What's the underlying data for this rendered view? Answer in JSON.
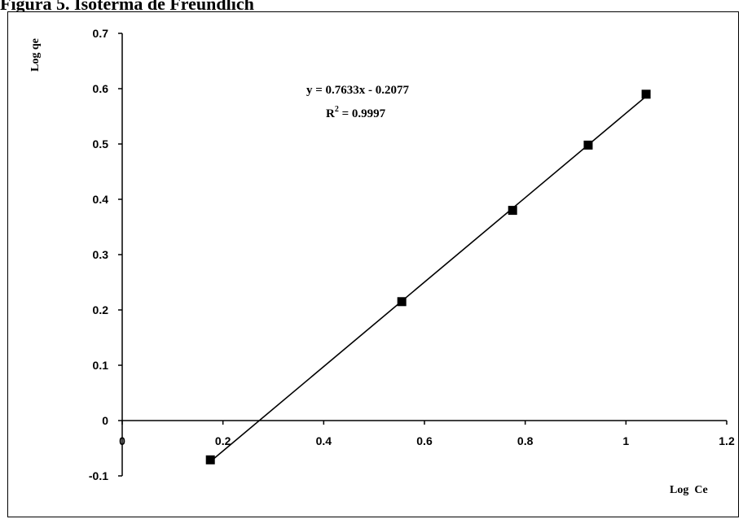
{
  "caption": "Figura 5. Isoterma de Freundlich",
  "chart_data": {
    "type": "scatter",
    "title": "",
    "xlabel": "Log  Ce",
    "ylabel": "Log qe",
    "xlim": [
      0,
      1.2
    ],
    "ylim": [
      -0.1,
      0.7
    ],
    "x_ticks": [
      "0",
      "0.2",
      "0.4",
      "0.6",
      "0.8",
      "1",
      "1.2"
    ],
    "y_ticks": [
      "-0.1",
      "0",
      "0.1",
      "0.2",
      "0.3",
      "0.4",
      "0.5",
      "0.6",
      "0.7"
    ],
    "grid": false,
    "series": [
      {
        "x": [
          0.175,
          0.555,
          0.775,
          0.925,
          1.04
        ],
        "y": [
          -0.071,
          0.215,
          0.38,
          0.498,
          0.59
        ],
        "marker": "square",
        "color": "#000000"
      }
    ],
    "trendline": {
      "slope": 0.7633,
      "intercept": -0.2077,
      "x_range": [
        0.175,
        1.04
      ],
      "equation": "y = 0.7633x - 0.2077",
      "r2_prefix": "R",
      "r2_sup": "2",
      "r2_value": " = 0.9997"
    }
  }
}
